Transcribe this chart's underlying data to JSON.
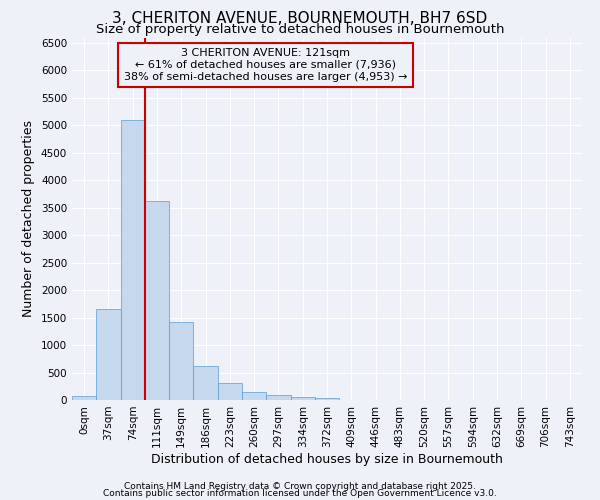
{
  "title_line1": "3, CHERITON AVENUE, BOURNEMOUTH, BH7 6SD",
  "title_line2": "Size of property relative to detached houses in Bournemouth",
  "xlabel": "Distribution of detached houses by size in Bournemouth",
  "ylabel": "Number of detached properties",
  "footnote_line1": "Contains HM Land Registry data © Crown copyright and database right 2025.",
  "footnote_line2": "Contains public sector information licensed under the Open Government Licence v3.0.",
  "bar_labels": [
    "0sqm",
    "37sqm",
    "74sqm",
    "111sqm",
    "149sqm",
    "186sqm",
    "223sqm",
    "260sqm",
    "297sqm",
    "334sqm",
    "372sqm",
    "409sqm",
    "446sqm",
    "483sqm",
    "520sqm",
    "557sqm",
    "594sqm",
    "632sqm",
    "669sqm",
    "706sqm",
    "743sqm"
  ],
  "bar_values": [
    75,
    1650,
    5100,
    3620,
    1420,
    620,
    310,
    150,
    95,
    55,
    30,
    0,
    0,
    0,
    0,
    0,
    0,
    0,
    0,
    0,
    0
  ],
  "bar_color": "#c5d8ed",
  "bar_edge_color": "#5b9bd5",
  "vline_x": 2.5,
  "vline_color": "#cc0000",
  "ylim": [
    0,
    6600
  ],
  "yticks": [
    0,
    500,
    1000,
    1500,
    2000,
    2500,
    3000,
    3500,
    4000,
    4500,
    5000,
    5500,
    6000,
    6500
  ],
  "annotation_text": "3 CHERITON AVENUE: 121sqm\n← 61% of detached houses are smaller (7,936)\n38% of semi-detached houses are larger (4,953) →",
  "annotation_box_color": "#cc0000",
  "background_color": "#eef2f8",
  "grid_color": "#ffffff",
  "title_fontsize": 11,
  "subtitle_fontsize": 9.5,
  "axis_label_fontsize": 9,
  "tick_fontsize": 7.5,
  "annotation_fontsize": 8
}
